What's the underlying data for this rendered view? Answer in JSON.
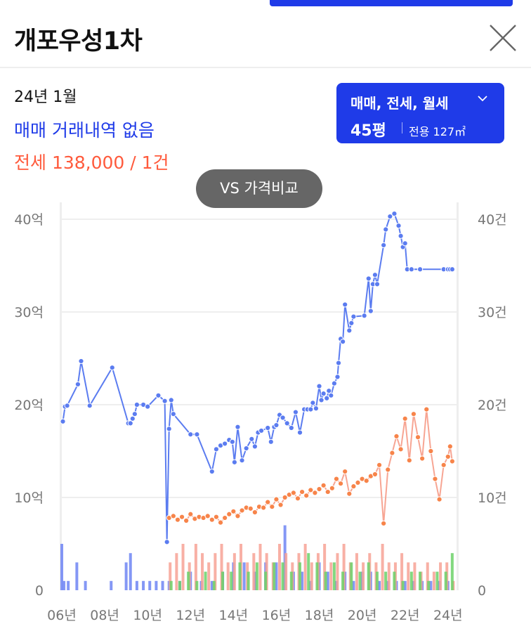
{
  "header": {
    "title": "개포우성1차"
  },
  "summary": {
    "period": "24년 1월",
    "sale_text": "매매 거래내역 없음",
    "jeonse_text": "전세 138,000 / 1건"
  },
  "filter": {
    "types_label": "매매, 전세, 월세",
    "pyeong_label": "45평",
    "area_label": "전용 127㎡"
  },
  "compare_button": {
    "label": "VS 가격비교"
  },
  "colors": {
    "brand": "#1f3be8",
    "sale_line": "#5b7cf0",
    "jeonse_line": "#f7a593",
    "jeonse_point": "#f7844a",
    "sale_volume": "#6f85f3",
    "jeonse_volume": "#f7a295",
    "rent_volume": "#6cd169"
  },
  "chart_data": {
    "type": "line",
    "x_axis": {
      "ticks": [
        "06년",
        "08년",
        "10년",
        "12년",
        "14년",
        "16년",
        "18년",
        "20년",
        "22년",
        "24년"
      ],
      "xlim": [
        2006.0,
        2024.4
      ]
    },
    "y_left": {
      "unit": "억",
      "ticks": [
        "0",
        "10억",
        "20억",
        "30억",
        "40억"
      ],
      "ylim": [
        0,
        40
      ]
    },
    "y_right": {
      "unit": "건",
      "ticks": [
        "0",
        "10건",
        "20건",
        "30건",
        "40건"
      ],
      "ylim": [
        0,
        40
      ]
    },
    "grid": true,
    "series": [
      {
        "name": "매매",
        "kind": "price",
        "x": [
          2006.05,
          2006.15,
          2006.25,
          2006.75,
          2006.9,
          2007.3,
          2008.35,
          2009.1,
          2009.2,
          2009.3,
          2009.4,
          2009.5,
          2009.8,
          2010.0,
          2010.5,
          2010.8,
          2010.9,
          2011.0,
          2011.1,
          2011.2,
          2012.0,
          2012.3,
          2013.0,
          2013.2,
          2013.4,
          2013.6,
          2013.8,
          2013.95,
          2014.05,
          2014.2,
          2014.4,
          2014.6,
          2014.85,
          2015.0,
          2015.15,
          2015.3,
          2015.6,
          2015.75,
          2015.9,
          2016.0,
          2016.15,
          2016.3,
          2016.5,
          2016.7,
          2016.9,
          2017.1,
          2017.3,
          2017.45,
          2017.6,
          2017.7,
          2017.85,
          2018.0,
          2018.1,
          2018.2,
          2018.35,
          2018.45,
          2018.55,
          2018.7,
          2018.85,
          2018.9,
          2019.0,
          2019.1,
          2019.2,
          2019.4,
          2019.5,
          2019.6,
          2020.1,
          2020.3,
          2020.4,
          2020.5,
          2020.6,
          2020.7,
          2021.0,
          2021.1,
          2021.3,
          2021.5,
          2021.7,
          2021.8,
          2021.9,
          2022.0,
          2022.1,
          2022.3,
          2022.7,
          2023.8,
          2024.0,
          2024.1,
          2024.2
        ],
        "values": [
          18.2,
          19.8,
          19.9,
          22.2,
          24.7,
          19.9,
          24.0,
          18.0,
          18.0,
          18.5,
          19.0,
          20.0,
          20.0,
          19.8,
          21.0,
          20.4,
          5.2,
          17.4,
          20.5,
          19.0,
          16.8,
          16.8,
          12.8,
          15.2,
          15.6,
          15.8,
          16.2,
          16.0,
          13.8,
          17.6,
          14.0,
          15.3,
          16.3,
          15.5,
          17.0,
          17.2,
          17.5,
          16.0,
          17.6,
          17.8,
          18.9,
          18.6,
          18.0,
          17.5,
          19.2,
          17.0,
          19.5,
          19.5,
          19.5,
          20.2,
          19.6,
          22.0,
          20.5,
          21.2,
          20.7,
          21.5,
          21.0,
          22.3,
          23.0,
          24.5,
          27.1,
          26.8,
          30.8,
          28.0,
          28.8,
          29.5,
          29.6,
          33.6,
          30.1,
          33.0,
          34.0,
          33.0,
          37.2,
          38.9,
          40.3,
          40.6,
          39.3,
          38.2,
          37.0,
          37.4,
          34.6,
          34.6,
          34.6,
          34.6,
          34.6,
          34.6,
          34.6
        ],
        "color": "#5b7cf0"
      },
      {
        "name": "전세",
        "kind": "price",
        "x": [
          2011.0,
          2011.2,
          2011.4,
          2011.6,
          2011.8,
          2012.0,
          2012.2,
          2012.4,
          2012.6,
          2012.8,
          2013.0,
          2013.2,
          2013.4,
          2013.6,
          2013.8,
          2014.0,
          2014.2,
          2014.4,
          2014.6,
          2014.8,
          2015.0,
          2015.2,
          2015.4,
          2015.6,
          2015.8,
          2016.0,
          2016.2,
          2016.4,
          2016.6,
          2016.8,
          2017.0,
          2017.2,
          2017.4,
          2017.6,
          2017.8,
          2018.0,
          2018.2,
          2018.4,
          2018.6,
          2018.8,
          2019.0,
          2019.2,
          2019.4,
          2019.6,
          2019.8,
          2020.0,
          2020.2,
          2020.4,
          2020.6,
          2020.8,
          2021.0,
          2021.2,
          2021.4,
          2021.6,
          2021.8,
          2022.0,
          2022.2,
          2022.4,
          2022.6,
          2022.8,
          2023.0,
          2023.2,
          2023.4,
          2023.6,
          2023.8,
          2024.0,
          2024.1,
          2024.2
        ],
        "values": [
          7.8,
          8.0,
          7.6,
          7.9,
          7.5,
          8.2,
          7.7,
          7.9,
          7.8,
          8.0,
          7.6,
          7.9,
          7.3,
          7.8,
          8.2,
          8.5,
          8.0,
          8.6,
          8.9,
          8.8,
          8.4,
          9.0,
          8.9,
          9.5,
          9.0,
          9.8,
          9.2,
          10.0,
          10.3,
          10.5,
          9.9,
          10.6,
          10.2,
          10.8,
          10.5,
          10.9,
          11.3,
          10.6,
          11.0,
          12.0,
          11.5,
          12.8,
          10.4,
          11.2,
          11.6,
          12.0,
          11.8,
          12.3,
          12.5,
          13.5,
          7.2,
          13.0,
          14.8,
          16.6,
          15.2,
          18.5,
          14.0,
          19.0,
          16.5,
          14.2,
          19.5,
          15.0,
          12.0,
          9.8,
          13.5,
          14.4,
          15.5,
          13.9
        ],
        "color": "#f7844a"
      },
      {
        "name": "매매 거래량",
        "kind": "volume",
        "x": [
          2006.0,
          2006.1,
          2006.3,
          2006.7,
          2007.1,
          2008.3,
          2009.0,
          2009.2,
          2009.5,
          2009.8,
          2010.1,
          2010.4,
          2010.7,
          2011.0,
          2011.5,
          2012.0,
          2012.5,
          2013.0,
          2013.5,
          2014.0,
          2014.5,
          2015.0,
          2015.5,
          2016.0,
          2016.4,
          2016.8,
          2017.2,
          2017.6,
          2018.0,
          2018.4,
          2018.8,
          2019.2,
          2019.6,
          2020.0,
          2020.4,
          2020.8,
          2021.2,
          2021.6,
          2022.0,
          2022.4,
          2022.8,
          2023.2,
          2023.6,
          2024.0
        ],
        "values": [
          5,
          1,
          1,
          3,
          1,
          1,
          3,
          4,
          1,
          1,
          1,
          1,
          1,
          1,
          1,
          2,
          1,
          1,
          2,
          3,
          3,
          2,
          3,
          3,
          7,
          2,
          2,
          1,
          3,
          2,
          1,
          2,
          1,
          2,
          2,
          1,
          1,
          1,
          1,
          1,
          1,
          1,
          1,
          1
        ],
        "color": "#6f85f3"
      },
      {
        "name": "전세 거래량",
        "kind": "volume",
        "x": [
          2011.0,
          2011.3,
          2011.6,
          2011.9,
          2012.2,
          2012.5,
          2012.8,
          2013.1,
          2013.4,
          2013.7,
          2014.0,
          2014.3,
          2014.6,
          2014.9,
          2015.2,
          2015.5,
          2015.8,
          2016.1,
          2016.4,
          2016.7,
          2017.0,
          2017.3,
          2017.6,
          2017.9,
          2018.2,
          2018.5,
          2018.8,
          2019.1,
          2019.4,
          2019.7,
          2020.0,
          2020.3,
          2020.6,
          2020.9,
          2021.2,
          2021.5,
          2021.8,
          2022.1,
          2022.4,
          2022.7,
          2023.0,
          2023.3,
          2023.6,
          2023.9,
          2024.2
        ],
        "values": [
          3,
          4,
          5,
          3,
          5,
          4,
          3,
          4,
          5,
          3,
          4,
          5,
          3,
          4,
          5,
          4,
          3,
          5,
          4,
          3,
          4,
          5,
          3,
          4,
          5,
          3,
          4,
          5,
          3,
          4,
          3,
          4,
          3,
          5,
          3,
          3,
          4,
          3,
          3,
          2,
          3,
          2,
          3,
          3,
          1
        ],
        "color": "#f7a295"
      },
      {
        "name": "월세 거래량",
        "kind": "volume",
        "x": [
          2011.0,
          2011.4,
          2011.8,
          2012.2,
          2012.6,
          2013.0,
          2013.4,
          2013.8,
          2014.2,
          2014.6,
          2015.0,
          2015.4,
          2015.8,
          2016.2,
          2016.6,
          2017.0,
          2017.4,
          2017.8,
          2018.2,
          2018.6,
          2019.0,
          2019.4,
          2019.8,
          2020.2,
          2020.6,
          2021.0,
          2021.4,
          2021.8,
          2022.2,
          2022.6,
          2023.0,
          2023.4,
          2023.8,
          2024.1
        ],
        "values": [
          1,
          1,
          2,
          1,
          2,
          1,
          2,
          2,
          3,
          2,
          3,
          2,
          3,
          3,
          2,
          3,
          4,
          3,
          2,
          3,
          2,
          3,
          2,
          3,
          2,
          2,
          2,
          1,
          2,
          2,
          1,
          2,
          2,
          4
        ],
        "color": "#6cd169"
      }
    ]
  }
}
